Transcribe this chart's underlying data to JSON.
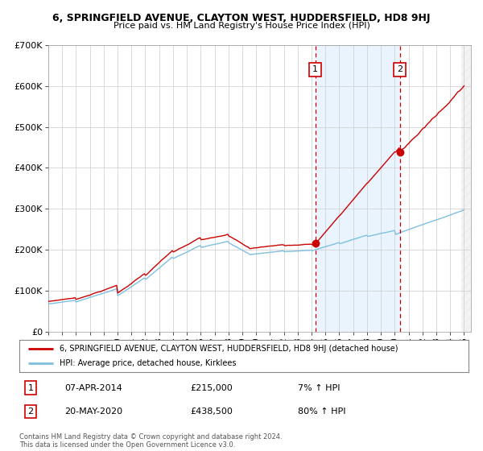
{
  "title1": "6, SPRINGFIELD AVENUE, CLAYTON WEST, HUDDERSFIELD, HD8 9HJ",
  "title2": "Price paid vs. HM Land Registry's House Price Index (HPI)",
  "ylim": [
    0,
    700000
  ],
  "yticks": [
    0,
    100000,
    200000,
    300000,
    400000,
    500000,
    600000,
    700000
  ],
  "ytick_labels": [
    "£0",
    "£100K",
    "£200K",
    "£300K",
    "£400K",
    "£500K",
    "£600K",
    "£700K"
  ],
  "x_start_year": 1995,
  "x_end_year": 2025,
  "sale1_date": 2014.27,
  "sale1_price": 215000,
  "sale1_label": "1",
  "sale1_text": "07-APR-2014",
  "sale1_amount": "£215,000",
  "sale1_hpi": "7% ↑ HPI",
  "sale2_date": 2020.38,
  "sale2_price": 438500,
  "sale2_label": "2",
  "sale2_text": "20-MAY-2020",
  "sale2_amount": "£438,500",
  "sale2_hpi": "80% ↑ HPI",
  "hpi_line_color": "#7fbfdf",
  "price_line_color": "#cc0000",
  "sale_dot_color": "#cc0000",
  "vline_color": "#cc0000",
  "shade_color": "#ddeeff",
  "legend_line1": "6, SPRINGFIELD AVENUE, CLAYTON WEST, HUDDERSFIELD, HD8 9HJ (detached house)",
  "legend_line2": "HPI: Average price, detached house, Kirklees",
  "footnote": "Contains HM Land Registry data © Crown copyright and database right 2024.\nThis data is licensed under the Open Government Licence v3.0.",
  "background_color": "#ffffff",
  "grid_color": "#cccccc"
}
